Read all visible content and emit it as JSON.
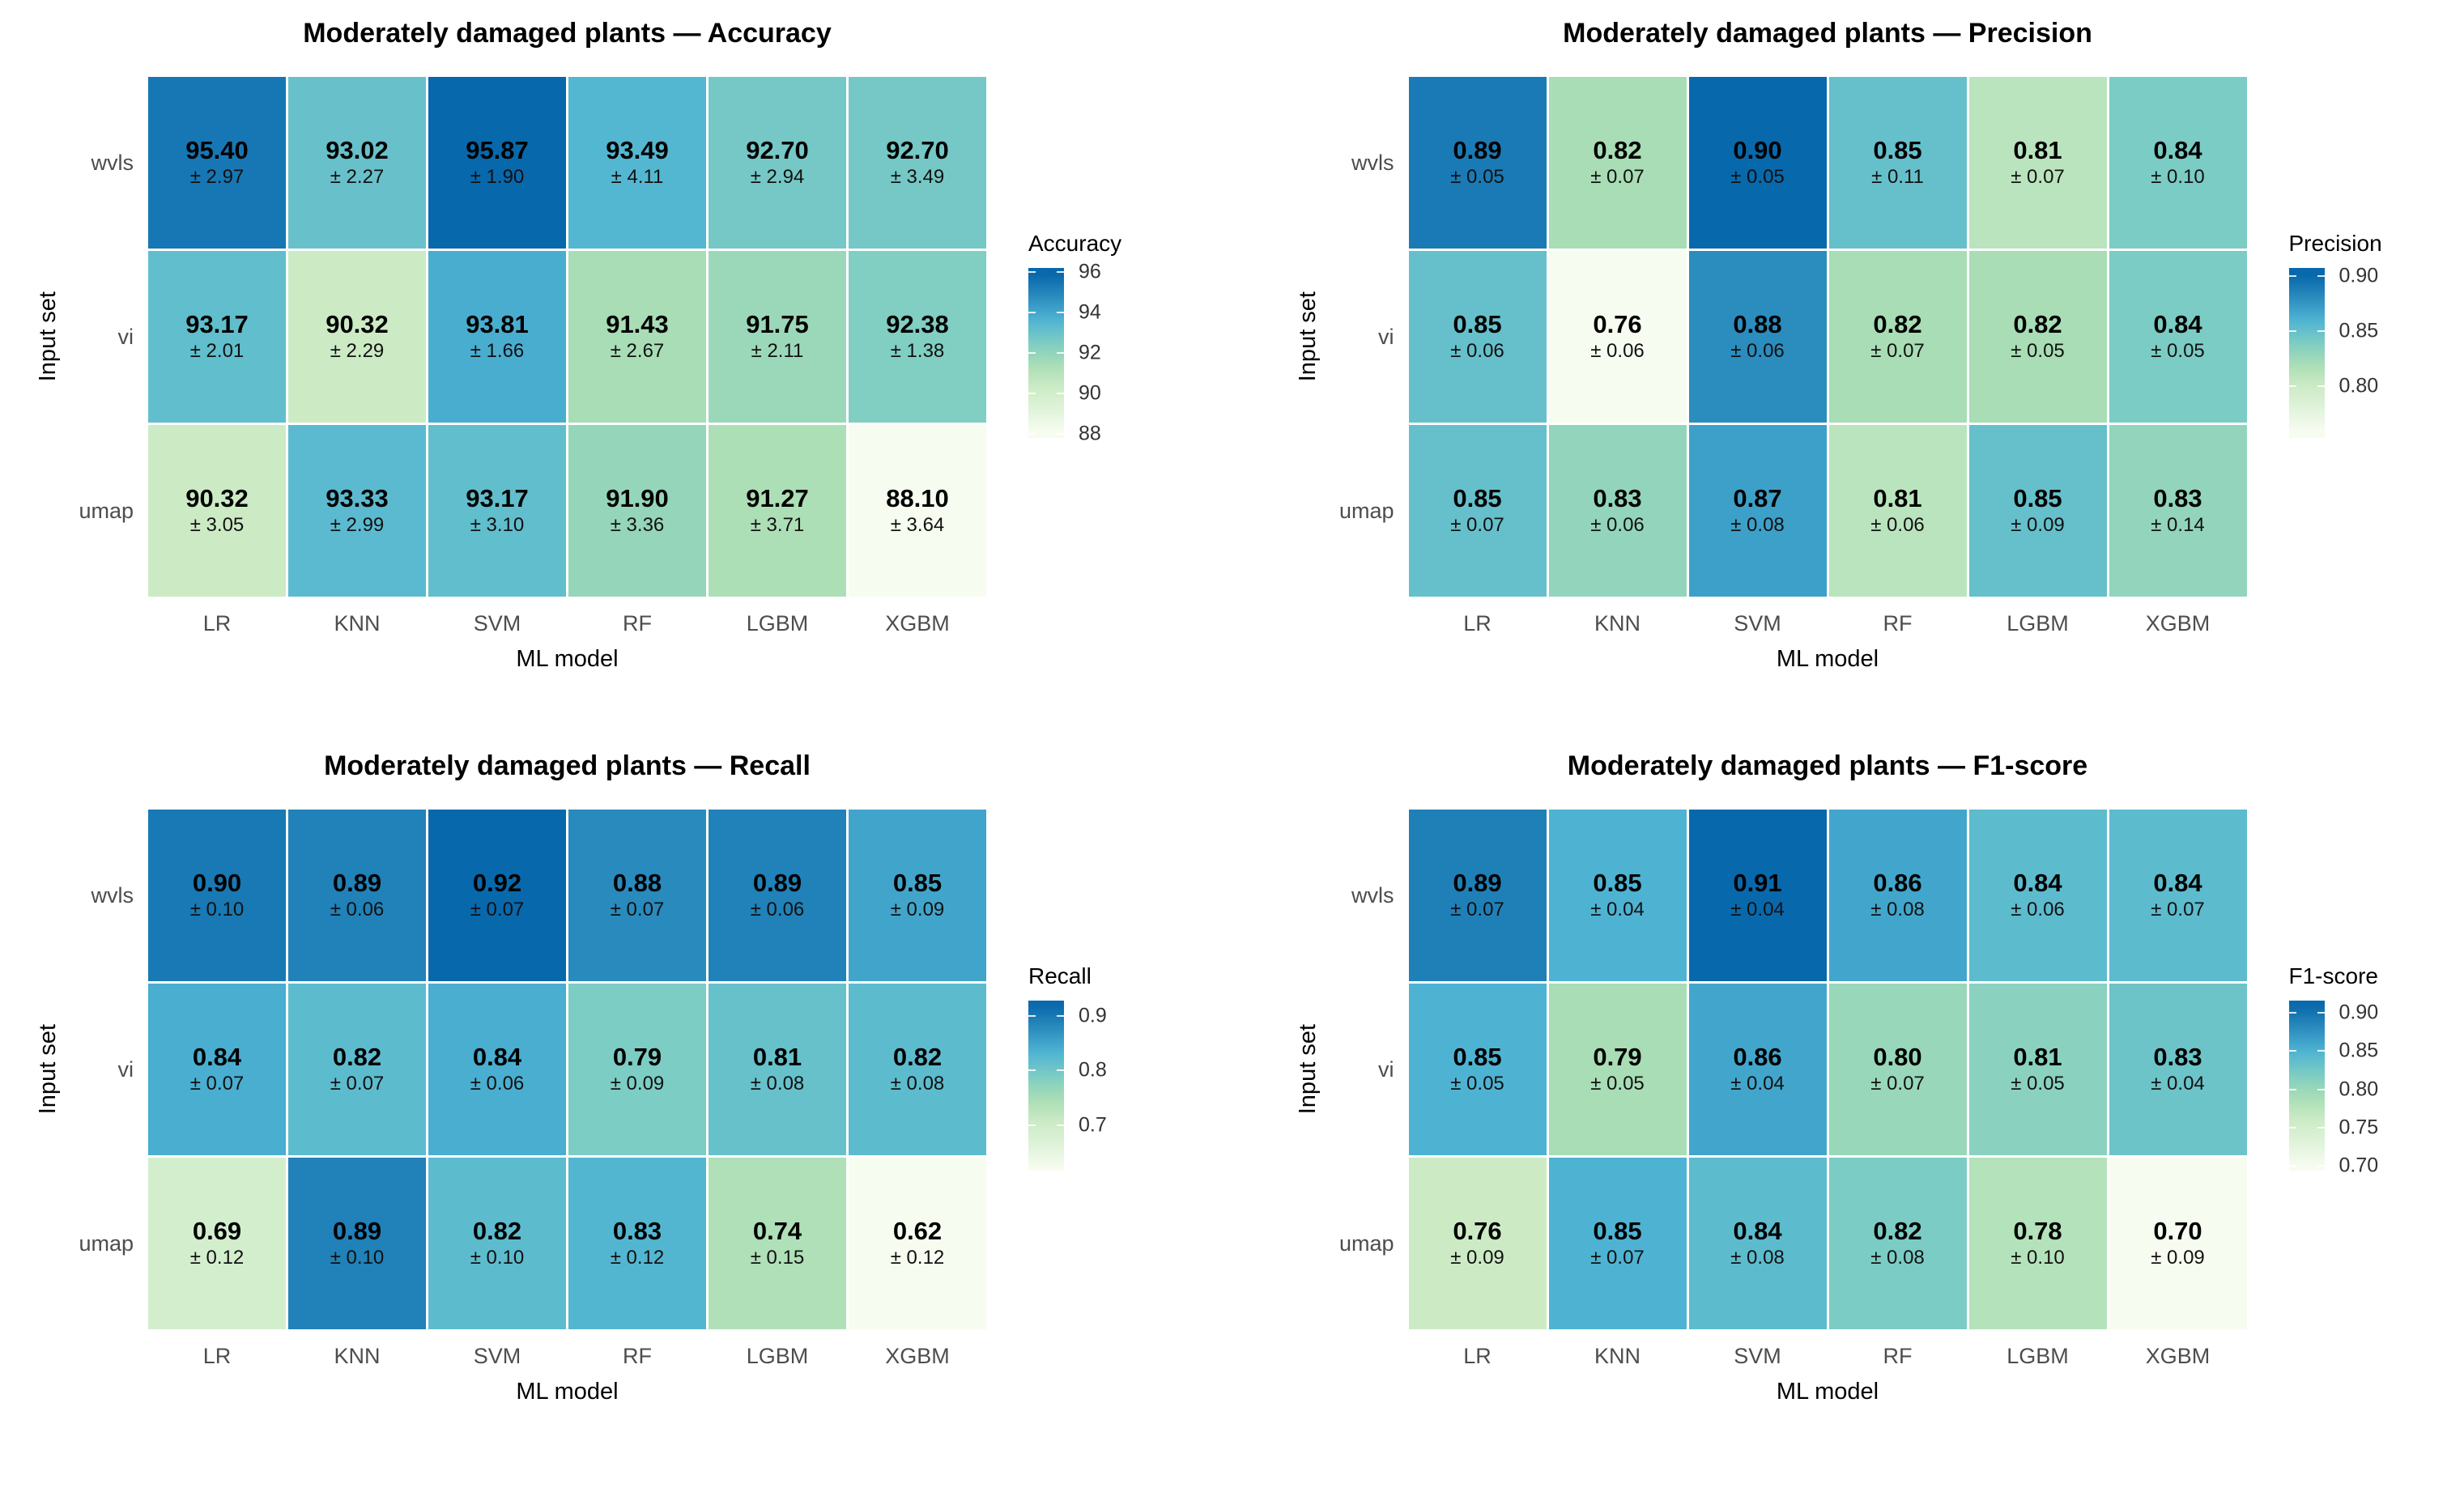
{
  "figure": {
    "background": "#ffffff"
  },
  "palette": {
    "name": "GnBu",
    "stops": [
      "#f7fcf0",
      "#e0f3db",
      "#ccebc5",
      "#a8ddb5",
      "#7bccc4",
      "#4eb3d3",
      "#2b8cbe",
      "#0868ac"
    ]
  },
  "text_colors": {
    "title": "#000000",
    "axis_title": "#000000",
    "axis_text": "#4d4d4d",
    "cell_text": "#000000",
    "legend_text": "#333333"
  },
  "chart_data": [
    {
      "type": "heatmap",
      "id": "accuracy",
      "title": "Moderately damaged plants — Accuracy",
      "legend_title": "Accuracy",
      "xlabel": "ML model",
      "ylabel": "Input set",
      "x_categories": [
        "LR",
        "KNN",
        "SVM",
        "RF",
        "LGBM",
        "XGBM"
      ],
      "y_categories": [
        "wvls",
        "vi",
        "umap"
      ],
      "values": [
        [
          95.4,
          93.02,
          95.87,
          93.49,
          92.7,
          92.7
        ],
        [
          93.17,
          90.32,
          93.81,
          91.43,
          91.75,
          92.38
        ],
        [
          90.32,
          93.33,
          93.17,
          91.9,
          91.27,
          88.1
        ]
      ],
      "errors": [
        [
          2.97,
          2.27,
          1.9,
          4.11,
          2.94,
          3.49
        ],
        [
          2.01,
          2.29,
          1.66,
          2.67,
          2.11,
          1.38
        ],
        [
          3.05,
          2.99,
          3.1,
          3.36,
          3.71,
          3.64
        ]
      ],
      "value_decimals": 2,
      "error_decimals": 2,
      "error_prefix": "±",
      "scale": {
        "min": 88.1,
        "max": 95.87
      },
      "legend": {
        "domain_min": 87.8,
        "domain_max": 96.2,
        "ticks": [
          {
            "label": "96",
            "value": 96
          },
          {
            "label": "94",
            "value": 94
          },
          {
            "label": "92",
            "value": 92
          },
          {
            "label": "90",
            "value": 90
          },
          {
            "label": "88",
            "value": 88
          }
        ]
      }
    },
    {
      "type": "heatmap",
      "id": "precision",
      "title": "Moderately damaged plants — Precision",
      "legend_title": "Precision",
      "xlabel": "ML model",
      "ylabel": "Input set",
      "x_categories": [
        "LR",
        "KNN",
        "SVM",
        "RF",
        "LGBM",
        "XGBM"
      ],
      "y_categories": [
        "wvls",
        "vi",
        "umap"
      ],
      "values": [
        [
          0.89,
          0.82,
          0.9,
          0.85,
          0.81,
          0.84
        ],
        [
          0.85,
          0.76,
          0.88,
          0.82,
          0.82,
          0.84
        ],
        [
          0.85,
          0.83,
          0.87,
          0.81,
          0.85,
          0.83
        ]
      ],
      "errors": [
        [
          0.05,
          0.07,
          0.05,
          0.11,
          0.07,
          0.1
        ],
        [
          0.06,
          0.06,
          0.06,
          0.07,
          0.05,
          0.05
        ],
        [
          0.07,
          0.06,
          0.08,
          0.06,
          0.09,
          0.14
        ]
      ],
      "value_decimals": 2,
      "error_decimals": 2,
      "error_prefix": "±",
      "scale": {
        "min": 0.76,
        "max": 0.9
      },
      "legend": {
        "domain_min": 0.753,
        "domain_max": 0.907,
        "ticks": [
          {
            "label": "0.90",
            "value": 0.9
          },
          {
            "label": "0.85",
            "value": 0.85
          },
          {
            "label": "0.80",
            "value": 0.8
          }
        ]
      }
    },
    {
      "type": "heatmap",
      "id": "recall",
      "title": "Moderately damaged plants — Recall",
      "legend_title": "Recall",
      "xlabel": "ML model",
      "ylabel": "Input set",
      "x_categories": [
        "LR",
        "KNN",
        "SVM",
        "RF",
        "LGBM",
        "XGBM"
      ],
      "y_categories": [
        "wvls",
        "vi",
        "umap"
      ],
      "values": [
        [
          0.9,
          0.89,
          0.92,
          0.88,
          0.89,
          0.85
        ],
        [
          0.84,
          0.82,
          0.84,
          0.79,
          0.81,
          0.82
        ],
        [
          0.69,
          0.89,
          0.82,
          0.83,
          0.74,
          0.62
        ]
      ],
      "errors": [
        [
          0.1,
          0.06,
          0.07,
          0.07,
          0.06,
          0.09
        ],
        [
          0.07,
          0.07,
          0.06,
          0.09,
          0.08,
          0.08
        ],
        [
          0.12,
          0.1,
          0.1,
          0.12,
          0.15,
          0.12
        ]
      ],
      "value_decimals": 2,
      "error_decimals": 2,
      "error_prefix": "±",
      "scale": {
        "min": 0.62,
        "max": 0.92
      },
      "legend": {
        "domain_min": 0.617,
        "domain_max": 0.928,
        "ticks": [
          {
            "label": "0.9",
            "value": 0.9
          },
          {
            "label": "0.8",
            "value": 0.8
          },
          {
            "label": "0.7",
            "value": 0.7
          }
        ]
      }
    },
    {
      "type": "heatmap",
      "id": "f1-score",
      "title": "Moderately damaged plants — F1-score",
      "legend_title": "F1-score",
      "xlabel": "ML model",
      "ylabel": "Input set",
      "x_categories": [
        "LR",
        "KNN",
        "SVM",
        "RF",
        "LGBM",
        "XGBM"
      ],
      "y_categories": [
        "wvls",
        "vi",
        "umap"
      ],
      "values": [
        [
          0.89,
          0.85,
          0.91,
          0.86,
          0.84,
          0.84
        ],
        [
          0.85,
          0.79,
          0.86,
          0.8,
          0.81,
          0.83
        ],
        [
          0.76,
          0.85,
          0.84,
          0.82,
          0.78,
          0.7
        ]
      ],
      "errors": [
        [
          0.07,
          0.04,
          0.04,
          0.08,
          0.06,
          0.07
        ],
        [
          0.05,
          0.05,
          0.04,
          0.07,
          0.05,
          0.04
        ],
        [
          0.09,
          0.07,
          0.08,
          0.08,
          0.1,
          0.09
        ]
      ],
      "value_decimals": 2,
      "error_decimals": 2,
      "error_prefix": "±",
      "scale": {
        "min": 0.7,
        "max": 0.91
      },
      "legend": {
        "domain_min": 0.694,
        "domain_max": 0.916,
        "ticks": [
          {
            "label": "0.90",
            "value": 0.9
          },
          {
            "label": "0.85",
            "value": 0.85
          },
          {
            "label": "0.80",
            "value": 0.8
          },
          {
            "label": "0.75",
            "value": 0.75
          },
          {
            "label": "0.70",
            "value": 0.7
          }
        ]
      }
    }
  ]
}
